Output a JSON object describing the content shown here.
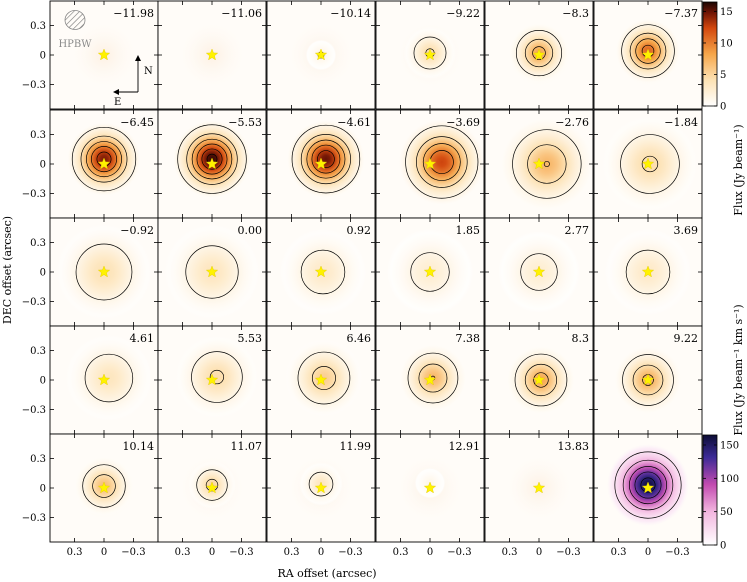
{
  "chart_data": {
    "type": "heatmap",
    "description_type": "channel_maps",
    "xlabel": "RA offset (arcsec)",
    "ylabel": "DEC offset (arcsec)",
    "x_ticks": [
      "0.3",
      "0",
      "−0.3"
    ],
    "y_ticks": [
      "0.3",
      "0",
      "−0.3"
    ],
    "xlim": [
      0.55,
      -0.55
    ],
    "ylim": [
      -0.55,
      0.55
    ],
    "beam_label": "HPBW",
    "compass": {
      "north": "N",
      "east": "E"
    },
    "colorbars": [
      {
        "label": "Flux (Jy beam⁻¹)",
        "ticks": [
          0,
          5,
          10,
          15
        ],
        "range": [
          0,
          16.5
        ],
        "colormap": "orange"
      },
      {
        "label": "Flux (Jy beam⁻¹ km s⁻¹)",
        "ticks": [
          0,
          50,
          100,
          150
        ],
        "range": [
          0,
          165
        ],
        "colormap": "purple"
      }
    ],
    "panels": [
      {
        "velocity": "−11.98",
        "peak": 0.0,
        "features": []
      },
      {
        "velocity": "−11.06",
        "peak": 0.4,
        "features": []
      },
      {
        "velocity": "−10.14",
        "peak": 1.5,
        "features": [
          {
            "x": 0.0,
            "y": 0.0,
            "a": 0.07,
            "peak": 1.5
          }
        ]
      },
      {
        "velocity": "−9.22",
        "peak": 4.5,
        "features": [
          {
            "x": 0.0,
            "y": 0.02,
            "a": 0.12,
            "peak": 4.5
          }
        ]
      },
      {
        "velocity": "−8.3",
        "peak": 8.0,
        "features": [
          {
            "x": 0.0,
            "y": 0.02,
            "a": 0.14,
            "peak": 8.0
          }
        ]
      },
      {
        "velocity": "−7.37",
        "peak": 11.0,
        "features": [
          {
            "x": 0.0,
            "y": 0.04,
            "a": 0.15,
            "peak": 11.0
          }
        ]
      },
      {
        "velocity": "−6.45",
        "peak": 14.5,
        "features": [
          {
            "x": 0.0,
            "y": 0.05,
            "a": 0.17,
            "peak": 14.5
          }
        ]
      },
      {
        "velocity": "−5.53",
        "peak": 16.0,
        "features": [
          {
            "x": 0.0,
            "y": 0.05,
            "a": 0.18,
            "peak": 16.0
          }
        ]
      },
      {
        "velocity": "−4.61",
        "peak": 15.0,
        "features": [
          {
            "x": -0.05,
            "y": 0.05,
            "a": 0.18,
            "peak": 15.0
          }
        ]
      },
      {
        "velocity": "−3.69",
        "peak": 12.5,
        "features": [
          {
            "x": -0.12,
            "y": 0.02,
            "a": 0.2,
            "peak": 12.5
          }
        ]
      },
      {
        "velocity": "−2.76",
        "peak": 7.0,
        "features": [
          {
            "x": -0.08,
            "y": 0.0,
            "a": 0.22,
            "peak": 7.0
          }
        ]
      },
      {
        "velocity": "−1.84",
        "peak": 4.5,
        "features": [
          {
            "x": -0.02,
            "y": 0.0,
            "a": 0.22,
            "peak": 4.5
          }
        ]
      },
      {
        "velocity": "−0.92",
        "peak": 4.0,
        "features": [
          {
            "x": 0.0,
            "y": 0.0,
            "a": 0.22,
            "peak": 4.0
          }
        ]
      },
      {
        "velocity": "0.00",
        "peak": 3.5,
        "features": [
          {
            "x": 0.0,
            "y": 0.0,
            "a": 0.22,
            "peak": 3.5
          }
        ]
      },
      {
        "velocity": "0.92",
        "peak": 3.0,
        "features": [
          {
            "x": -0.02,
            "y": 0.0,
            "a": 0.2,
            "peak": 3.0
          }
        ]
      },
      {
        "velocity": "1.85",
        "peak": 2.5,
        "features": [
          {
            "x": 0.0,
            "y": 0.0,
            "a": 0.2,
            "peak": 2.5
          }
        ]
      },
      {
        "velocity": "2.77",
        "peak": 2.5,
        "features": [
          {
            "x": 0.0,
            "y": 0.0,
            "a": 0.19,
            "peak": 2.5
          }
        ]
      },
      {
        "velocity": "3.69",
        "peak": 3.0,
        "features": [
          {
            "x": 0.0,
            "y": 0.0,
            "a": 0.2,
            "peak": 3.0
          }
        ]
      },
      {
        "velocity": "4.61",
        "peak": 3.5,
        "features": [
          {
            "x": -0.05,
            "y": 0.02,
            "a": 0.2,
            "peak": 3.5
          }
        ]
      },
      {
        "velocity": "5.53",
        "peak": 4.5,
        "features": [
          {
            "x": -0.05,
            "y": 0.03,
            "a": 0.19,
            "peak": 4.5
          }
        ]
      },
      {
        "velocity": "6.46",
        "peak": 5.5,
        "features": [
          {
            "x": -0.03,
            "y": 0.02,
            "a": 0.18,
            "peak": 5.5
          }
        ]
      },
      {
        "velocity": "7.38",
        "peak": 7.0,
        "features": [
          {
            "x": -0.03,
            "y": 0.02,
            "a": 0.16,
            "peak": 7.0
          }
        ]
      },
      {
        "velocity": "8.3",
        "peak": 8.0,
        "features": [
          {
            "x": -0.02,
            "y": 0.0,
            "a": 0.16,
            "peak": 8.0
          }
        ]
      },
      {
        "velocity": "9.22",
        "peak": 7.5,
        "features": [
          {
            "x": 0.0,
            "y": 0.0,
            "a": 0.16,
            "peak": 7.5
          }
        ]
      },
      {
        "velocity": "10.14",
        "peak": 6.5,
        "features": [
          {
            "x": 0.0,
            "y": 0.02,
            "a": 0.14,
            "peak": 6.5
          }
        ]
      },
      {
        "velocity": "11.07",
        "peak": 5.0,
        "features": [
          {
            "x": 0.0,
            "y": 0.03,
            "a": 0.11,
            "peak": 5.0
          }
        ]
      },
      {
        "velocity": "11.99",
        "peak": 3.5,
        "features": [
          {
            "x": 0.0,
            "y": 0.04,
            "a": 0.1,
            "peak": 3.5
          }
        ]
      },
      {
        "velocity": "12.91",
        "peak": 1.2,
        "features": [
          {
            "x": 0.0,
            "y": 0.05,
            "a": 0.07,
            "peak": 1.2
          }
        ]
      },
      {
        "velocity": "13.83",
        "peak": 0.2,
        "features": []
      },
      {
        "velocity": "",
        "peak": 160,
        "features": [
          {
            "x": 0.0,
            "y": 0.03,
            "a": 0.19,
            "peak": 160
          }
        ],
        "moment0": true
      }
    ]
  }
}
